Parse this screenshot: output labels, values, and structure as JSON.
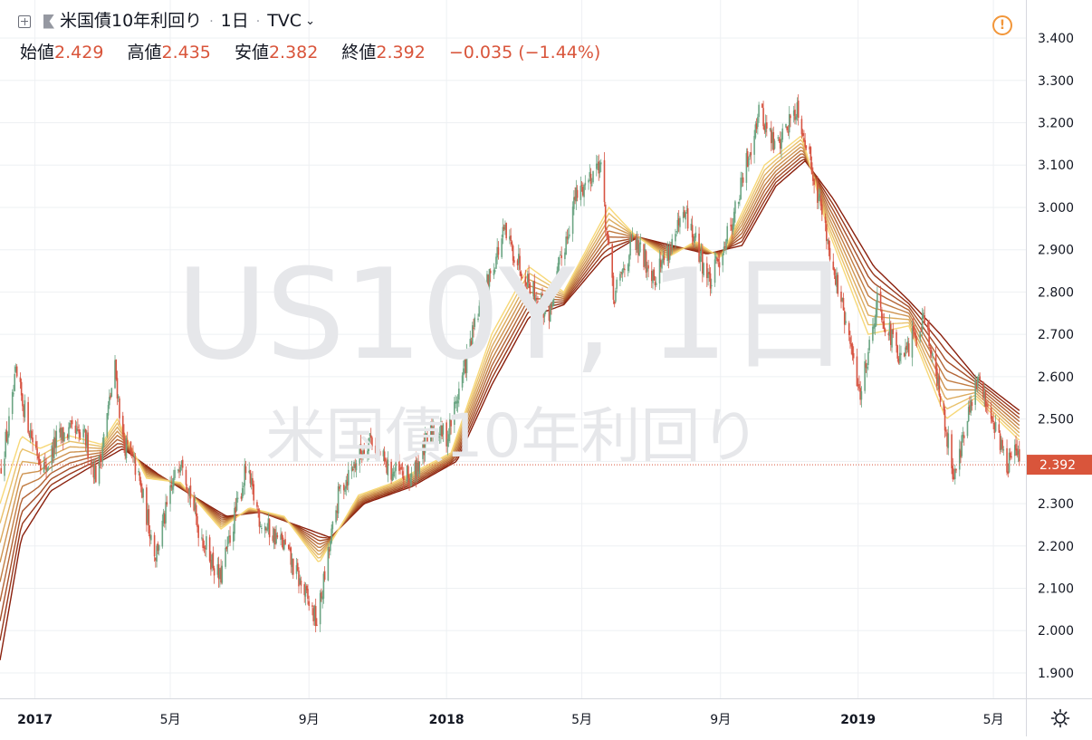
{
  "header": {
    "symbol_name": "米国債10年利回り",
    "interval": "1日",
    "exchange": "TVC",
    "exchange_chevron": "⌄"
  },
  "ohlc": {
    "open_label": "始値",
    "open": "2.429",
    "high_label": "高値",
    "high": "2.435",
    "low_label": "安値",
    "low": "2.382",
    "close_label": "終値",
    "close": "2.392",
    "change": "−0.035 (−1.44%)"
  },
  "watermark": {
    "symbol": "US10Y, 1日",
    "name": "米国債10年利回り"
  },
  "alert_icon": "!",
  "colors": {
    "candle_up": "#6ba583",
    "candle_down": "#d75442",
    "ribbon_fast": "#f7d878",
    "ribbon_slow": "#8a1f0c",
    "price_label_bg": "#d9553b",
    "grid": "#eef0f3"
  },
  "chart_data": {
    "type": "candlestick",
    "title": "米国債10年利回り · 1日 · TVC",
    "y_ticks": [
      "3.400",
      "3.300",
      "3.200",
      "3.100",
      "3.000",
      "2.900",
      "2.800",
      "2.700",
      "2.600",
      "2.500",
      "2.400",
      "2.300",
      "2.200",
      "2.100",
      "2.000",
      "1.900"
    ],
    "x_ticks": [
      "2017",
      "5月",
      "9月",
      "2018",
      "5月",
      "9月",
      "2019",
      "5月"
    ],
    "last_price": "2.392",
    "ylim": [
      1.84,
      3.49
    ],
    "xlim": [
      "2016-12-01",
      "2019-05-25"
    ],
    "grid": true,
    "close_path": [
      [
        "2016-12-01",
        2.38
      ],
      [
        "2016-12-10",
        2.5
      ],
      [
        "2016-12-15",
        2.6
      ],
      [
        "2016-12-20",
        2.55
      ],
      [
        "2016-12-30",
        2.45
      ],
      [
        "2017-01-10",
        2.38
      ],
      [
        "2017-01-20",
        2.45
      ],
      [
        "2017-02-01",
        2.47
      ],
      [
        "2017-02-15",
        2.45
      ],
      [
        "2017-02-25",
        2.36
      ],
      [
        "2017-03-13",
        2.62
      ],
      [
        "2017-03-20",
        2.45
      ],
      [
        "2017-04-01",
        2.38
      ],
      [
        "2017-04-18",
        2.18
      ],
      [
        "2017-05-01",
        2.32
      ],
      [
        "2017-05-11",
        2.42
      ],
      [
        "2017-05-25",
        2.25
      ],
      [
        "2017-06-14",
        2.12
      ],
      [
        "2017-07-07",
        2.38
      ],
      [
        "2017-07-20",
        2.26
      ],
      [
        "2017-08-10",
        2.2
      ],
      [
        "2017-09-08",
        2.02
      ],
      [
        "2017-09-28",
        2.33
      ],
      [
        "2017-10-25",
        2.46
      ],
      [
        "2017-11-10",
        2.38
      ],
      [
        "2017-12-01",
        2.36
      ],
      [
        "2017-12-20",
        2.48
      ],
      [
        "2018-01-02",
        2.46
      ],
      [
        "2018-01-15",
        2.6
      ],
      [
        "2018-02-01",
        2.78
      ],
      [
        "2018-02-21",
        2.94
      ],
      [
        "2018-03-10",
        2.85
      ],
      [
        "2018-04-01",
        2.74
      ],
      [
        "2018-04-25",
        3.02
      ],
      [
        "2018-05-17",
        3.11
      ],
      [
        "2018-05-29",
        2.78
      ],
      [
        "2018-06-15",
        2.92
      ],
      [
        "2018-07-05",
        2.84
      ],
      [
        "2018-08-01",
        2.98
      ],
      [
        "2018-08-23",
        2.82
      ],
      [
        "2018-09-15",
        3.0
      ],
      [
        "2018-10-05",
        3.23
      ],
      [
        "2018-10-20",
        3.14
      ],
      [
        "2018-11-08",
        3.24
      ],
      [
        "2018-11-25",
        3.05
      ],
      [
        "2018-12-10",
        2.86
      ],
      [
        "2019-01-03",
        2.56
      ],
      [
        "2019-01-18",
        2.78
      ],
      [
        "2019-02-08",
        2.63
      ],
      [
        "2019-03-01",
        2.75
      ],
      [
        "2019-03-27",
        2.37
      ],
      [
        "2019-04-17",
        2.59
      ],
      [
        "2019-05-01",
        2.5
      ],
      [
        "2019-05-13",
        2.39
      ],
      [
        "2019-05-20",
        2.43
      ],
      [
        "2019-05-24",
        2.392
      ]
    ],
    "ribbon": {
      "count": 9,
      "first": [
        [
          "2016-12-01",
          2.3
        ],
        [
          "2016-12-20",
          2.46
        ],
        [
          "2017-01-05",
          2.43
        ],
        [
          "2017-02-01",
          2.46
        ],
        [
          "2017-03-01",
          2.44
        ],
        [
          "2017-03-15",
          2.5
        ],
        [
          "2017-04-10",
          2.36
        ],
        [
          "2017-05-10",
          2.35
        ],
        [
          "2017-06-15",
          2.24
        ],
        [
          "2017-07-10",
          2.29
        ],
        [
          "2017-08-10",
          2.27
        ],
        [
          "2017-09-10",
          2.16
        ],
        [
          "2017-10-15",
          2.32
        ],
        [
          "2017-11-15",
          2.35
        ],
        [
          "2018-01-05",
          2.42
        ],
        [
          "2018-02-10",
          2.7
        ],
        [
          "2018-03-15",
          2.86
        ],
        [
          "2018-04-15",
          2.8
        ],
        [
          "2018-05-25",
          3.0
        ],
        [
          "2018-06-15",
          2.94
        ],
        [
          "2018-07-15",
          2.88
        ],
        [
          "2018-08-10",
          2.92
        ],
        [
          "2018-09-01",
          2.88
        ],
        [
          "2018-10-10",
          3.1
        ],
        [
          "2018-11-12",
          3.17
        ],
        [
          "2018-12-05",
          2.95
        ],
        [
          "2019-01-10",
          2.7
        ],
        [
          "2019-02-15",
          2.72
        ],
        [
          "2019-03-20",
          2.5
        ],
        [
          "2019-04-15",
          2.55
        ],
        [
          "2019-05-24",
          2.45
        ]
      ],
      "last": [
        [
          "2016-12-01",
          1.93
        ],
        [
          "2016-12-20",
          2.22
        ],
        [
          "2017-01-15",
          2.33
        ],
        [
          "2017-02-15",
          2.38
        ],
        [
          "2017-03-20",
          2.43
        ],
        [
          "2017-04-20",
          2.37
        ],
        [
          "2017-05-20",
          2.32
        ],
        [
          "2017-06-20",
          2.27
        ],
        [
          "2017-07-20",
          2.28
        ],
        [
          "2017-08-20",
          2.25
        ],
        [
          "2017-09-20",
          2.22
        ],
        [
          "2017-10-20",
          2.3
        ],
        [
          "2017-12-01",
          2.34
        ],
        [
          "2018-01-10",
          2.4
        ],
        [
          "2018-02-10",
          2.58
        ],
        [
          "2018-03-15",
          2.74
        ],
        [
          "2018-04-15",
          2.77
        ],
        [
          "2018-05-20",
          2.88
        ],
        [
          "2018-06-20",
          2.93
        ],
        [
          "2018-07-20",
          2.91
        ],
        [
          "2018-08-20",
          2.89
        ],
        [
          "2018-09-20",
          2.91
        ],
        [
          "2018-10-20",
          3.05
        ],
        [
          "2018-11-15",
          3.11
        ],
        [
          "2018-12-10",
          3.02
        ],
        [
          "2019-01-15",
          2.86
        ],
        [
          "2019-02-15",
          2.78
        ],
        [
          "2019-03-15",
          2.7
        ],
        [
          "2019-04-15",
          2.6
        ],
        [
          "2019-05-24",
          2.52
        ]
      ]
    }
  }
}
